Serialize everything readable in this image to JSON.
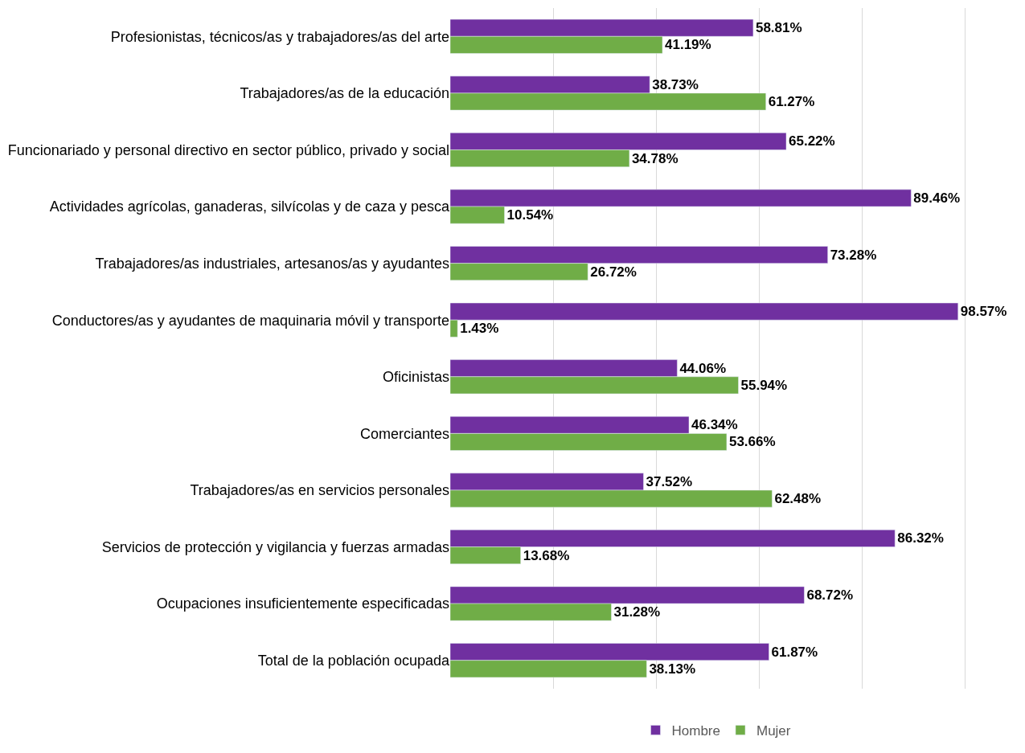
{
  "chart_data": {
    "type": "bar",
    "orientation": "horizontal",
    "categories": [
      "Profesionistas, técnicos/as y trabajadores/as del arte",
      "Trabajadores/as de la educación",
      "Funcionariado y personal directivo en sector público, privado y social",
      "Actividades agrícolas, ganaderas, silvícolas y de caza y pesca",
      "Trabajadores/as industriales, artesanos/as y ayudantes",
      "Conductores/as y ayudantes de maquinaria móvil y transporte",
      "Oficinistas",
      "Comerciantes",
      "Trabajadores/as en servicios personales",
      "Servicios de protección y vigilancia y fuerzas armadas",
      "Ocupaciones insuficientemente especificadas",
      "Total de la población ocupada"
    ],
    "series": [
      {
        "name": "Hombre",
        "color": "#7030a0",
        "values": [
          58.81,
          38.73,
          65.22,
          89.46,
          73.28,
          98.57,
          44.06,
          46.34,
          37.52,
          86.32,
          68.72,
          61.87
        ],
        "value_labels": [
          "58.81%",
          "38.73%",
          "65.22%",
          "89.46%",
          "73.28%",
          "98.57%",
          "44.06%",
          "46.34%",
          "37.52%",
          "86.32%",
          "68.72%",
          "61.87%"
        ]
      },
      {
        "name": "Mujer",
        "color": "#70ad47",
        "values": [
          41.19,
          61.27,
          34.78,
          10.54,
          26.72,
          1.43,
          55.94,
          53.66,
          62.48,
          13.68,
          31.28,
          38.13
        ],
        "value_labels": [
          "41.19%",
          "61.27%",
          "34.78%",
          "10.54%",
          "26.72%",
          "1.43%",
          "55.94%",
          "53.66%",
          "62.48%",
          "13.68%",
          "31.28%",
          "38.13%"
        ]
      }
    ],
    "grid": "x",
    "legend": "bottom",
    "tick_labels": "y"
  }
}
